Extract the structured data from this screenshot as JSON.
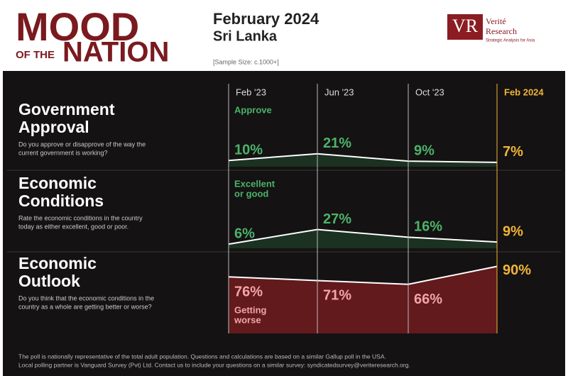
{
  "header": {
    "title_line1": "MOOD",
    "title_of_the": "OF THE",
    "title_line2": "NATION",
    "date": "February 2024",
    "country": "Sri Lanka",
    "sample_size": "[Sample Size: c.1000+]",
    "logo_mark": "VR",
    "logo_name_1": "Verité",
    "logo_name_2": "Research",
    "logo_tagline": "Strategic Analysis for Asia"
  },
  "chart_data": {
    "type": "area",
    "categories": [
      "Feb '23",
      "Jun '23",
      "Oct '23",
      "Feb 2024"
    ],
    "ylim": [
      0,
      100
    ],
    "series": [
      {
        "title_lines": [
          "Government",
          "Approval"
        ],
        "question_lines": [
          "Do you approve or disapprove of the way the",
          "current government is working?"
        ],
        "annotation_lines": [
          "Approve"
        ],
        "values": [
          10,
          21,
          9,
          7
        ],
        "value_labels": [
          "10%",
          "21%",
          "9%",
          "7%"
        ],
        "color": "#1c3524",
        "label_color": "#4cb26a"
      },
      {
        "title_lines": [
          "Economic",
          "Conditions"
        ],
        "question_lines": [
          "Rate the economic conditions in the country",
          "today as either excellent, good or poor."
        ],
        "annotation_lines": [
          "Excellent",
          "or good"
        ],
        "values": [
          6,
          27,
          16,
          9
        ],
        "value_labels": [
          "6%",
          "27%",
          "16%",
          "9%"
        ],
        "color": "#1c3524",
        "label_color": "#4cb26a"
      },
      {
        "title_lines": [
          "Economic",
          "Outlook"
        ],
        "question_lines": [
          "Do you think that the economic conditions in the",
          "country as a whole are getting better or worse?"
        ],
        "annotation_lines": [
          "Getting",
          "worse"
        ],
        "values": [
          76,
          71,
          66,
          90
        ],
        "value_labels": [
          "76%",
          "71%",
          "66%",
          "90%"
        ],
        "color": "#6a1c1e",
        "label_color": "#f2a5a5"
      }
    ],
    "highlight_color": "#f0b43a"
  },
  "footer": {
    "lines": [
      "The poll is nationally representative of the total adult population. Questions and calculations are based on a similar Gallup poll in the USA.",
      "Local polling partner is Vanguard Survey (Pvt) Ltd. Contact us to include your questions on a similar survey: syndicatedsurvey@veriteresearch.org."
    ]
  }
}
